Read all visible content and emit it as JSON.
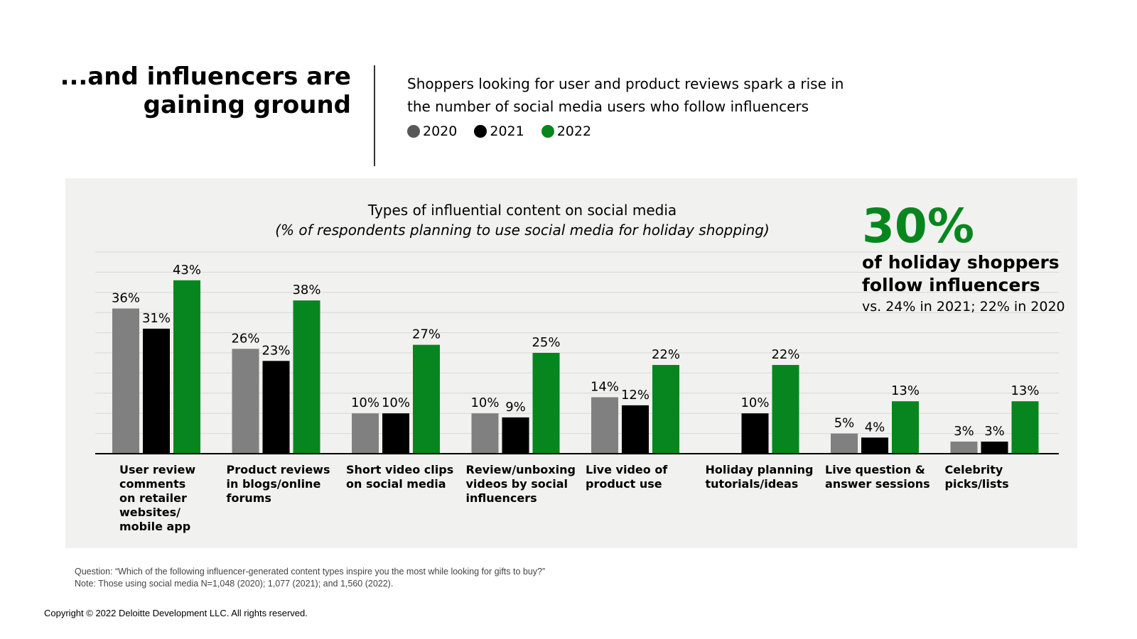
{
  "header": {
    "headline_line1": "...and influencers are",
    "headline_line2": "gaining ground",
    "subtitle_line1": "Shoppers looking for user and product reviews spark a rise in",
    "subtitle_line2": "the number of social media users who follow influencers"
  },
  "callout": {
    "value": "30%",
    "line1": "of holiday shoppers",
    "line2": "follow influencers",
    "line3": "vs. 24% in 2021; 22% in 2020"
  },
  "chart_data": {
    "type": "bar",
    "title": "Types of influential content on social media",
    "subtitle": "(% of respondents planning to use social media for holiday shopping)",
    "categories": [
      "User review comments on retailer websites/ mobile app",
      "Product reviews in blogs/online forums",
      "Short video clips on social media",
      "Review/unboxing videos by social influencers",
      "Live video of product use",
      "Holiday planning tutorials/ideas",
      "Live question & answer sessions",
      "Celebrity picks/lists"
    ],
    "category_lines": [
      [
        "User review",
        "comments",
        "on retailer",
        "websites/",
        "mobile app"
      ],
      [
        "Product reviews",
        "in blogs/online",
        "forums"
      ],
      [
        "Short video clips",
        "on social media"
      ],
      [
        "Review/unboxing",
        "videos by social",
        "influencers"
      ],
      [
        "Live video of",
        "product use"
      ],
      [
        "Holiday planning",
        "tutorials/ideas"
      ],
      [
        "Live question &",
        "answer sessions"
      ],
      [
        "Celebrity",
        "picks/lists"
      ]
    ],
    "series": [
      {
        "name": "2020",
        "color": "#808080",
        "values": [
          36,
          26,
          10,
          10,
          14,
          null,
          5,
          3
        ]
      },
      {
        "name": "2021",
        "color": "#000000",
        "values": [
          31,
          23,
          10,
          9,
          12,
          10,
          4,
          3
        ]
      },
      {
        "name": "2022",
        "color": "#07861f",
        "values": [
          43,
          38,
          27,
          25,
          22,
          22,
          13,
          13
        ]
      }
    ],
    "ylim": [
      0,
      50
    ],
    "grid": true,
    "grid_step": 5,
    "value_suffix": "%",
    "legend_position": "top"
  },
  "footnotes": {
    "question": "Question: “Which of the following influencer-generated content types inspire you the most while looking for gifts to buy?”",
    "note": "Note: Those using social media N=1,048 (2020); 1,077 (2021); and 1,560 (2022)."
  },
  "copyright": "Copyright © 2022 Deloitte Development LLC. All rights reserved."
}
